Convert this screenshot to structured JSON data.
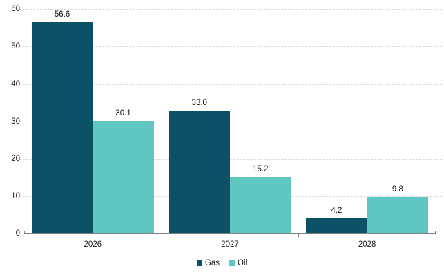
{
  "chart_data": {
    "type": "bar",
    "categories": [
      "2026",
      "2027",
      "2028"
    ],
    "series": [
      {
        "name": "Gas",
        "color": "#0d5166",
        "values": [
          56.6,
          33.0,
          4.2
        ]
      },
      {
        "name": "Oil",
        "color": "#5fc6c1",
        "values": [
          30.1,
          15.2,
          9.8
        ]
      }
    ],
    "value_labels": {
      "Gas": [
        "56.6",
        "33.0",
        "4.2"
      ],
      "Oil": [
        "30.1",
        "15.2",
        "9.8"
      ]
    },
    "title": "",
    "xlabel": "",
    "ylabel": "",
    "ylim": [
      0,
      60
    ],
    "ytick_step": 10,
    "yticks": [
      "0",
      "10",
      "20",
      "30",
      "40",
      "50",
      "60"
    ],
    "grid": "horizontal-dashed",
    "legend_position": "bottom-center"
  },
  "colors": {
    "gas": "#0d5166",
    "oil": "#5fc6c1",
    "gridline": "#d9d9d9",
    "axis_line": "#808080",
    "text": "#1f1f1f",
    "background": "#ffffff"
  },
  "legend": {
    "items": [
      {
        "label": "Gas"
      },
      {
        "label": "Oil"
      }
    ]
  }
}
